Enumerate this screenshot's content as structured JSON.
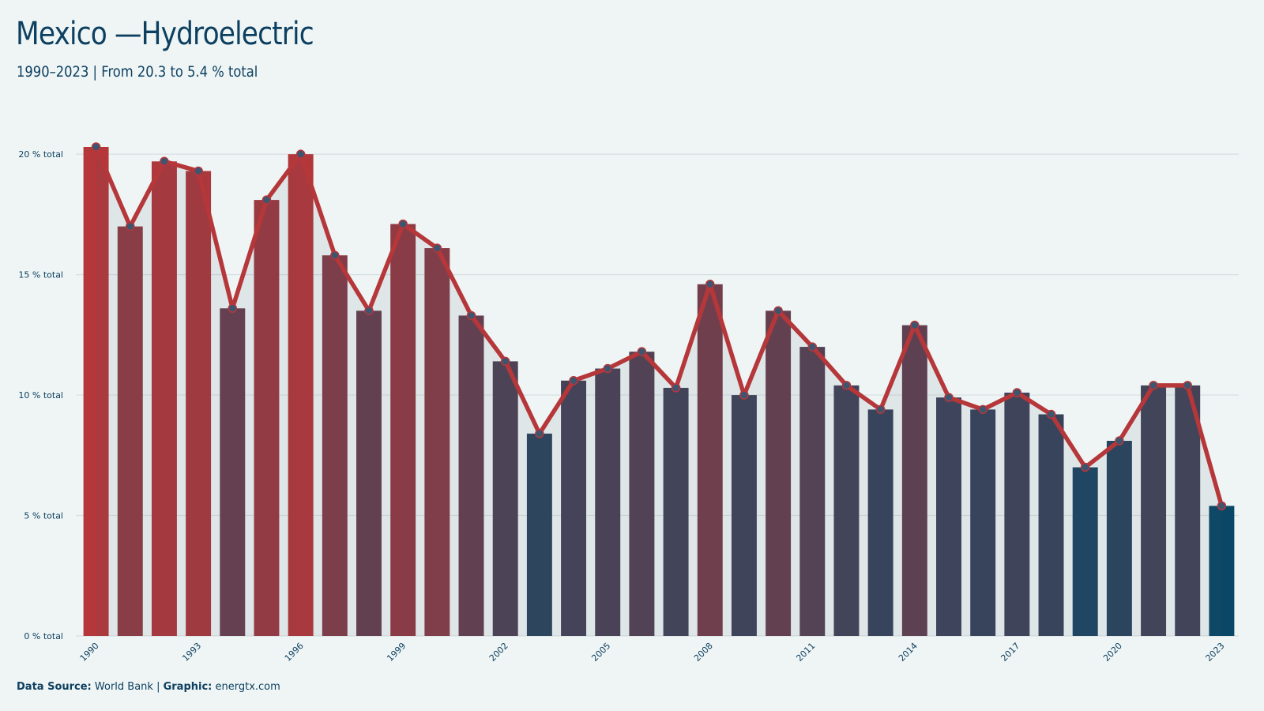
{
  "header": {
    "title": "Mexico —Hydroelectric",
    "subtitle": "1990–2023 | From 20.3 to 5.4 % total"
  },
  "footer": {
    "source_label": "Data Source:",
    "source_value": " World Bank | ",
    "graphic_label": "Graphic:",
    "graphic_value": " energtx.com"
  },
  "colors": {
    "background": "#eff5f5",
    "high": "#b5373a",
    "low": "#0a4766",
    "line": "#b5373a",
    "marker_fill": "#3e5570",
    "grid": "#d8dfe2",
    "text": "#0d4060"
  },
  "chart_data": {
    "type": "bar",
    "overlay": "line",
    "x": [
      1990,
      1991,
      1992,
      1993,
      1994,
      1995,
      1996,
      1997,
      1998,
      1999,
      2000,
      2001,
      2002,
      2003,
      2004,
      2005,
      2006,
      2007,
      2008,
      2009,
      2010,
      2011,
      2012,
      2013,
      2014,
      2015,
      2016,
      2017,
      2018,
      2019,
      2020,
      2021,
      2022,
      2023
    ],
    "values": [
      20.3,
      17.0,
      19.7,
      19.3,
      13.6,
      18.1,
      20.0,
      15.8,
      13.5,
      17.1,
      16.1,
      13.3,
      11.4,
      8.4,
      10.6,
      11.1,
      11.8,
      10.3,
      14.6,
      10.0,
      13.5,
      12.0,
      10.4,
      9.4,
      12.9,
      9.9,
      9.4,
      10.1,
      9.2,
      7.0,
      8.1,
      10.4,
      10.4,
      5.4
    ],
    "tick_labels": [
      "1990",
      "1993",
      "1996",
      "1999",
      "2002",
      "2005",
      "2008",
      "2011",
      "2014",
      "2017",
      "2020",
      "2023"
    ],
    "y_ticks": [
      0,
      5,
      10,
      15,
      20
    ],
    "y_tick_labels": [
      "0 % total",
      "5 % total",
      "10 % total",
      "15 % total",
      "20 % total"
    ],
    "ylim": [
      0,
      20.3
    ],
    "grid": true,
    "legend": "none"
  }
}
